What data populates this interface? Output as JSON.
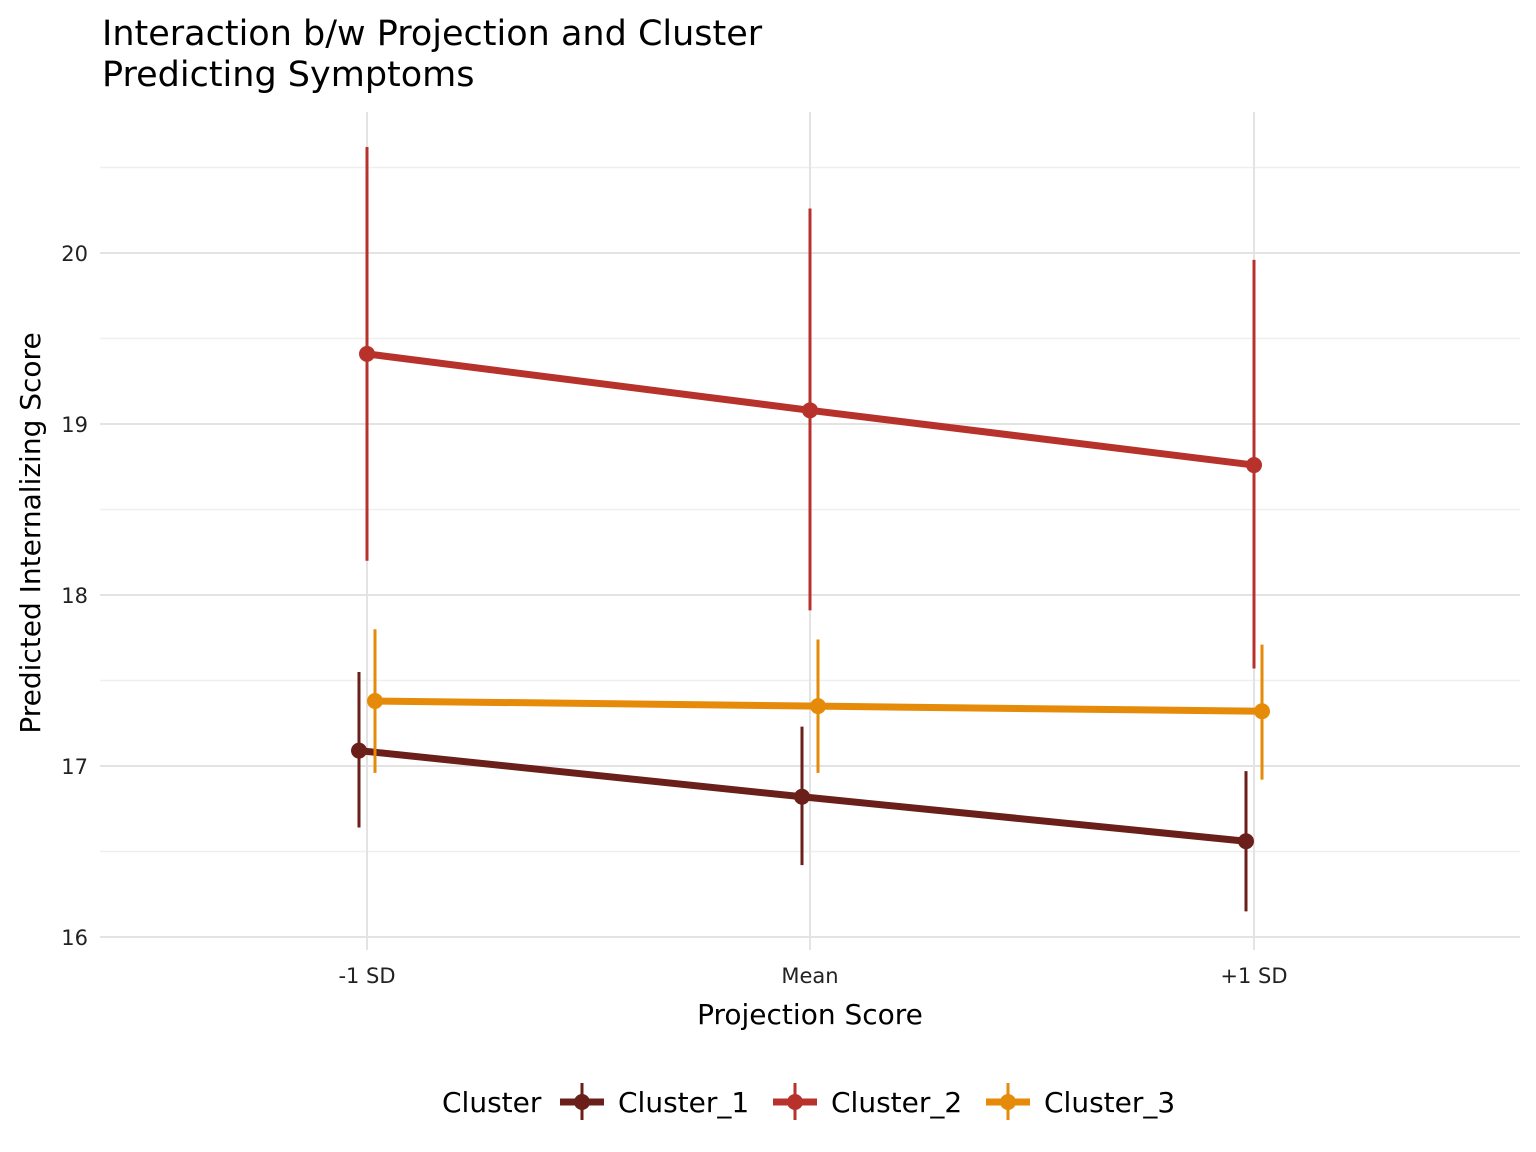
{
  "chart_data": {
    "type": "line",
    "title_line1": "Interaction b/w Projection and Cluster",
    "title_line2": "Predicting Symptoms",
    "xlabel": "Projection Score",
    "ylabel": "Predicted Internalizing Score",
    "categories": [
      "-1 SD",
      "Mean",
      "+1 SD"
    ],
    "ylim": [
      16,
      20.5
    ],
    "yticks": [
      "16",
      "17",
      "18",
      "19",
      "20"
    ],
    "grid": true,
    "legend_title": "Cluster",
    "legend_position": "bottom",
    "series": [
      {
        "name": "Cluster_1",
        "color": "#6B1F1A",
        "values": [
          17.09,
          16.82,
          16.56
        ],
        "lower": [
          16.64,
          16.42,
          16.15
        ],
        "upper": [
          17.55,
          17.23,
          16.97
        ]
      },
      {
        "name": "Cluster_2",
        "color": "#B8322C",
        "values": [
          19.41,
          19.08,
          18.76
        ],
        "lower": [
          18.2,
          17.91,
          17.57
        ],
        "upper": [
          20.62,
          20.26,
          19.96
        ]
      },
      {
        "name": "Cluster_3",
        "color": "#E68A0A",
        "values": [
          17.38,
          17.35,
          17.32
        ],
        "lower": [
          16.96,
          16.96,
          16.92
        ],
        "upper": [
          17.8,
          17.74,
          17.71
        ]
      }
    ]
  }
}
